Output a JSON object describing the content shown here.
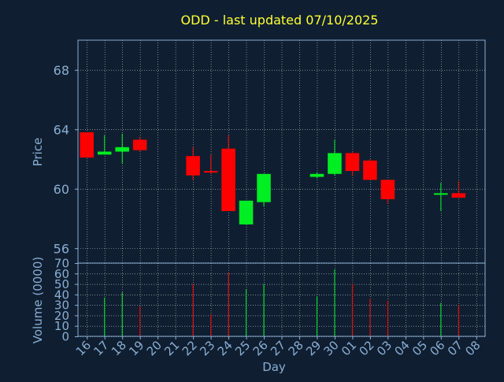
{
  "chart_data": {
    "type": "candlestick",
    "title": "ODD - last updated 07/10/2025",
    "xlabel": "Day",
    "colors": {
      "background": "#0f1f31",
      "axis": "#8aaed3",
      "title": "#ffff33",
      "up": "#00ee22",
      "down": "#ff0000",
      "grid": "#ffffff",
      "text": "#8aaed3"
    },
    "price_panel": {
      "ylabel": "Price",
      "ylim": [
        55,
        70
      ],
      "yticks": [
        56,
        60,
        64,
        68
      ],
      "grid": true
    },
    "volume_panel": {
      "ylabel": "Volume (0000)",
      "ylim": [
        0,
        70
      ],
      "yticks": [
        0,
        10,
        20,
        30,
        40,
        50,
        60,
        70
      ],
      "grid": true
    },
    "x_ticks": [
      "16",
      "17",
      "18",
      "19",
      "20",
      "21",
      "22",
      "23",
      "24",
      "25",
      "26",
      "27",
      "28",
      "29",
      "30",
      "01",
      "02",
      "03",
      "04",
      "05",
      "06",
      "07",
      "08"
    ],
    "candles": [
      {
        "day": "16",
        "open": 63.8,
        "high": 63.8,
        "low": 62.1,
        "close": 62.1,
        "volume": 0
      },
      {
        "day": "17",
        "open": 62.3,
        "high": 63.6,
        "low": 62.3,
        "close": 62.5,
        "volume": 37
      },
      {
        "day": "18",
        "open": 62.5,
        "high": 63.7,
        "low": 61.7,
        "close": 62.8,
        "volume": 42
      },
      {
        "day": "19",
        "open": 63.3,
        "high": 63.5,
        "low": 62.5,
        "close": 62.6,
        "volume": 29
      },
      {
        "day": "22",
        "open": 62.2,
        "high": 62.8,
        "low": 60.6,
        "close": 60.9,
        "volume": 50
      },
      {
        "day": "23",
        "open": 61.2,
        "high": 62.3,
        "low": 61.0,
        "close": 61.1,
        "volume": 21
      },
      {
        "day": "24",
        "open": 62.7,
        "high": 63.6,
        "low": 58.5,
        "close": 58.5,
        "volume": 61
      },
      {
        "day": "25",
        "open": 57.6,
        "high": 59.2,
        "low": 57.6,
        "close": 59.2,
        "volume": 45
      },
      {
        "day": "26",
        "open": 59.1,
        "high": 61.0,
        "low": 58.8,
        "close": 61.0,
        "volume": 50
      },
      {
        "day": "29",
        "open": 60.8,
        "high": 61.1,
        "low": 60.7,
        "close": 61.0,
        "volume": 38
      },
      {
        "day": "30",
        "open": 61.0,
        "high": 63.3,
        "low": 60.9,
        "close": 62.4,
        "volume": 64
      },
      {
        "day": "01",
        "open": 62.4,
        "high": 62.5,
        "low": 60.9,
        "close": 61.2,
        "volume": 50
      },
      {
        "day": "02",
        "open": 61.9,
        "high": 62.0,
        "low": 60.6,
        "close": 60.6,
        "volume": 36
      },
      {
        "day": "03",
        "open": 60.6,
        "high": 60.6,
        "low": 59.0,
        "close": 59.3,
        "volume": 34
      },
      {
        "day": "06",
        "open": 59.6,
        "high": 60.4,
        "low": 58.5,
        "close": 59.7,
        "volume": 32
      },
      {
        "day": "07",
        "open": 59.7,
        "high": 60.5,
        "low": 59.4,
        "close": 59.4,
        "volume": 30
      }
    ]
  }
}
